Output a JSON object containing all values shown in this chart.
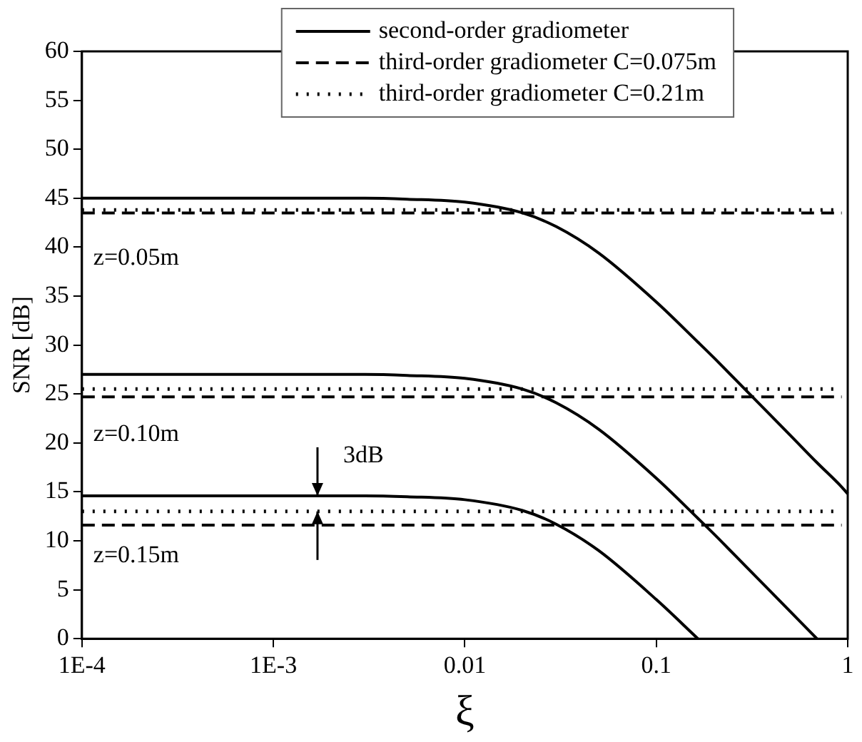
{
  "chart_data": {
    "type": "line",
    "xlabel": "ξ",
    "ylabel": "SNR [dB]",
    "log": "x",
    "x": [
      0.0001,
      0.001,
      0.003,
      0.005,
      0.01,
      0.02,
      0.03,
      0.05,
      0.1,
      0.165,
      0.2,
      0.3,
      0.5,
      0.69,
      0.93,
      1
    ],
    "series": [
      {
        "name": "second-order gradiometer",
        "color": "#000000",
        "line_style": "solid",
        "values": [
          45,
          45,
          45,
          44.9,
          44.6,
          43.5,
          42.1,
          39.4,
          34.4,
          30.3,
          28.7,
          25.2,
          20.8,
          18,
          15.5,
          14.8
        ]
      },
      {
        "color": "#000000",
        "line_style": "solid",
        "values": [
          27,
          27,
          27,
          26.9,
          26.6,
          25.5,
          24.1,
          21.4,
          16.4,
          12.3,
          10.7,
          7.2,
          2.8,
          0,
          null,
          null
        ]
      },
      {
        "color": "#000000",
        "line_style": "solid",
        "values": [
          14.6,
          14.6,
          14.6,
          14.5,
          14.2,
          13.1,
          11.7,
          9,
          4,
          0,
          null,
          null,
          null,
          null,
          null,
          null
        ]
      },
      {
        "name": "third-order gradiometer C=0.075m",
        "color": "#000000",
        "line_style": "dashed",
        "values": [
          43.5,
          43.5,
          43.5,
          43.5,
          43.5,
          43.5,
          43.5,
          43.5,
          43.5,
          43.5,
          43.5,
          43.5,
          43.5,
          43.5,
          43.5,
          null
        ]
      },
      {
        "color": "#000000",
        "line_style": "dashed",
        "values": [
          24.7,
          24.7,
          24.7,
          24.7,
          24.7,
          24.7,
          24.7,
          24.7,
          24.7,
          24.7,
          24.7,
          24.7,
          24.7,
          24.7,
          24.7,
          null
        ]
      },
      {
        "color": "#000000",
        "line_style": "dashed",
        "values": [
          11.6,
          11.6,
          11.6,
          11.6,
          11.6,
          11.6,
          11.6,
          11.6,
          11.6,
          11.6,
          11.6,
          11.6,
          11.6,
          11.6,
          11.6,
          null
        ]
      },
      {
        "name": "third-order gradiometer C=0.21m",
        "color": "#000000",
        "line_style": "dotted",
        "values": [
          43.8,
          43.8,
          43.8,
          43.8,
          43.8,
          43.8,
          43.8,
          43.8,
          43.8,
          43.8,
          43.8,
          43.8,
          43.8,
          43.8,
          43.8,
          null
        ]
      },
      {
        "color": "#000000",
        "line_style": "dotted",
        "values": [
          25.5,
          25.5,
          25.5,
          25.5,
          25.5,
          25.5,
          25.5,
          25.5,
          25.5,
          25.5,
          25.5,
          25.5,
          25.5,
          25.5,
          25.5,
          null
        ]
      },
      {
        "color": "#000000",
        "line_style": "dotted",
        "values": [
          13,
          13,
          13,
          13,
          13,
          13,
          13,
          13,
          13,
          13,
          13,
          13,
          13,
          13,
          13,
          null
        ]
      }
    ],
    "xlim": [
      0.0001,
      1
    ],
    "xticks": [
      {
        "value": 0.0001,
        "label": "1E-4"
      },
      {
        "value": 0.001,
        "label": "1E-3"
      },
      0.01,
      0.1,
      1
    ],
    "ylim": [
      0,
      60
    ],
    "yticks": [
      0,
      5,
      10,
      15,
      20,
      25,
      30,
      35,
      40,
      45,
      50,
      55,
      60
    ],
    "grid": false,
    "legend": "top",
    "marker": "none",
    "annotations": [
      "z=0.05m",
      "z=0.10m",
      "z=0.15m",
      {
        "text": "3dB",
        "x": 0.0017,
        "y": 13.1
      }
    ]
  }
}
